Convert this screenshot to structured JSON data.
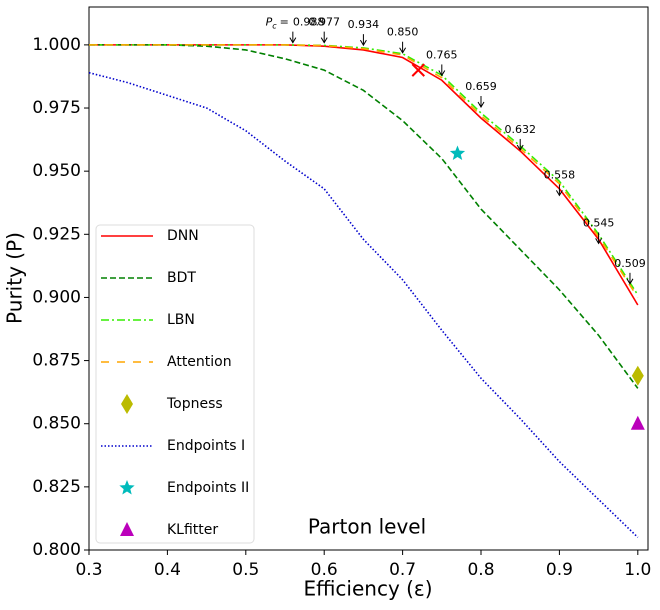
{
  "chart_data": {
    "type": "line",
    "xlabel": "Efficiency (ε)",
    "ylabel": "Purity (P)",
    "text": "Parton level",
    "xlim": [
      0.3,
      1.013
    ],
    "ylim": [
      0.8,
      1.015
    ],
    "xticks": [
      0.3,
      0.4,
      0.5,
      0.6,
      0.7,
      0.8,
      0.9,
      {
        "value": 1.0,
        "label": "1.0"
      }
    ],
    "yticks": [
      {
        "value": 0.8,
        "label": "0.800"
      },
      0.825,
      {
        "value": 0.85,
        "label": "0.850"
      },
      0.875,
      {
        "value": 0.9,
        "label": "0.900"
      },
      0.925,
      {
        "value": 0.95,
        "label": "0.950"
      },
      0.975,
      {
        "value": 1.0,
        "label": "1.000"
      }
    ],
    "x": [
      0.3,
      0.35,
      0.4,
      0.45,
      0.5,
      0.55,
      0.6,
      0.65,
      0.7,
      0.75,
      0.8,
      0.85,
      0.9,
      0.95,
      1.0
    ],
    "series": [
      {
        "name": "DNN",
        "color": "#ff0000",
        "dash": "solid",
        "values": [
          1.0,
          1.0,
          1.0,
          1.0,
          1.0,
          1.0,
          0.9995,
          0.998,
          0.995,
          0.986,
          0.971,
          0.958,
          0.943,
          0.923,
          0.897
        ]
      },
      {
        "name": "BDT",
        "color": "#008000",
        "dash": "dashed",
        "values": [
          1.0,
          1.0,
          1.0,
          0.9995,
          0.998,
          0.9945,
          0.99,
          0.982,
          0.97,
          0.955,
          0.935,
          0.919,
          0.903,
          0.885,
          0.864
        ]
      },
      {
        "name": "LBN",
        "color": "#33ee00",
        "dash": "dashdot",
        "values": [
          1.0,
          1.0,
          1.0,
          1.0,
          1.0,
          1.0,
          0.9998,
          0.9988,
          0.9965,
          0.988,
          0.973,
          0.96,
          0.946,
          0.925,
          0.901
        ]
      },
      {
        "name": "Attention",
        "color": "#ffa500",
        "dash": "loosedash",
        "values": [
          1.0,
          1.0,
          1.0,
          1.0,
          1.0,
          1.0,
          0.9997,
          0.9985,
          0.996,
          0.987,
          0.972,
          0.959,
          0.945,
          0.924,
          0.9
        ]
      },
      {
        "name": "Topness",
        "color": "#bbbb00",
        "marker": "diamond",
        "x": 1.0,
        "y": 0.869
      },
      {
        "name": "Endpoints I",
        "color": "#0000cc",
        "dash": "dotted",
        "values": [
          0.989,
          0.985,
          0.98,
          0.975,
          0.966,
          0.954,
          0.943,
          0.923,
          0.907,
          0.887,
          0.868,
          0.852,
          0.835,
          0.82,
          0.805
        ]
      },
      {
        "name": "Endpoints II",
        "color": "#00bbbb",
        "marker": "star",
        "x": 0.77,
        "y": 0.957
      },
      {
        "name": "KLfitter",
        "color": "#bb00bb",
        "marker": "triangle",
        "x": 1.0,
        "y": 0.85
      }
    ],
    "cross": {
      "x": 0.72,
      "y": 0.99,
      "color": "#ff0000"
    },
    "annotation_prefix": {
      "symbol": "P",
      "subscript": "c",
      "sign": "="
    },
    "annotations": [
      {
        "label": "0.988",
        "x": 0.56,
        "y": 1.0005
      },
      {
        "label": "0.977",
        "x": 0.6,
        "y": 1.0005
      },
      {
        "label": "0.934",
        "x": 0.65,
        "y": 0.9995
      },
      {
        "label": "0.850",
        "x": 0.7,
        "y": 0.9965
      },
      {
        "label": "0.765",
        "x": 0.75,
        "y": 0.9875
      },
      {
        "label": "0.659",
        "x": 0.8,
        "y": 0.975
      },
      {
        "label": "0.632",
        "x": 0.85,
        "y": 0.958
      },
      {
        "label": "0.558",
        "x": 0.9,
        "y": 0.94
      },
      {
        "label": "0.545",
        "x": 0.95,
        "y": 0.921
      },
      {
        "label": "0.509",
        "x": 0.99,
        "y": 0.905
      }
    ]
  }
}
